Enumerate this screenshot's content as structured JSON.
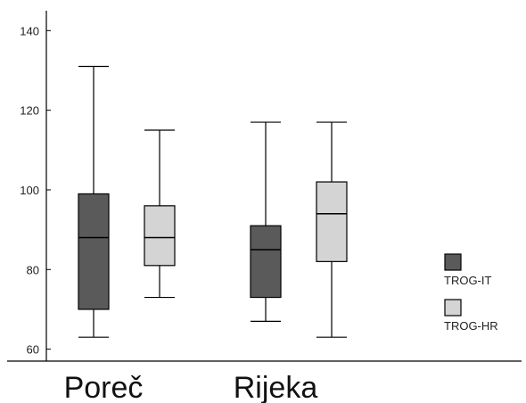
{
  "chart_data": {
    "type": "boxplot",
    "title": "",
    "xlabel": "",
    "ylabel": "",
    "ylim": [
      57,
      145
    ],
    "yticks": [
      60,
      80,
      100,
      120,
      140
    ],
    "categories": [
      "Poreč",
      "Rijeka"
    ],
    "series": [
      {
        "name": "TROG-IT",
        "color": "#5a5a5a",
        "boxes": [
          {
            "min": 63,
            "q1": 70,
            "median": 88,
            "q3": 99,
            "max": 131
          },
          {
            "min": 67,
            "q1": 73,
            "median": 85,
            "q3": 91,
            "max": 117
          }
        ]
      },
      {
        "name": "TROG-HR",
        "color": "#d4d4d4",
        "boxes": [
          {
            "min": 73,
            "q1": 81,
            "median": 88,
            "q3": 96,
            "max": 115
          },
          {
            "min": 63,
            "q1": 82,
            "median": 94,
            "q3": 102,
            "max": 117
          }
        ]
      }
    ],
    "grid": false,
    "legend": "right"
  }
}
